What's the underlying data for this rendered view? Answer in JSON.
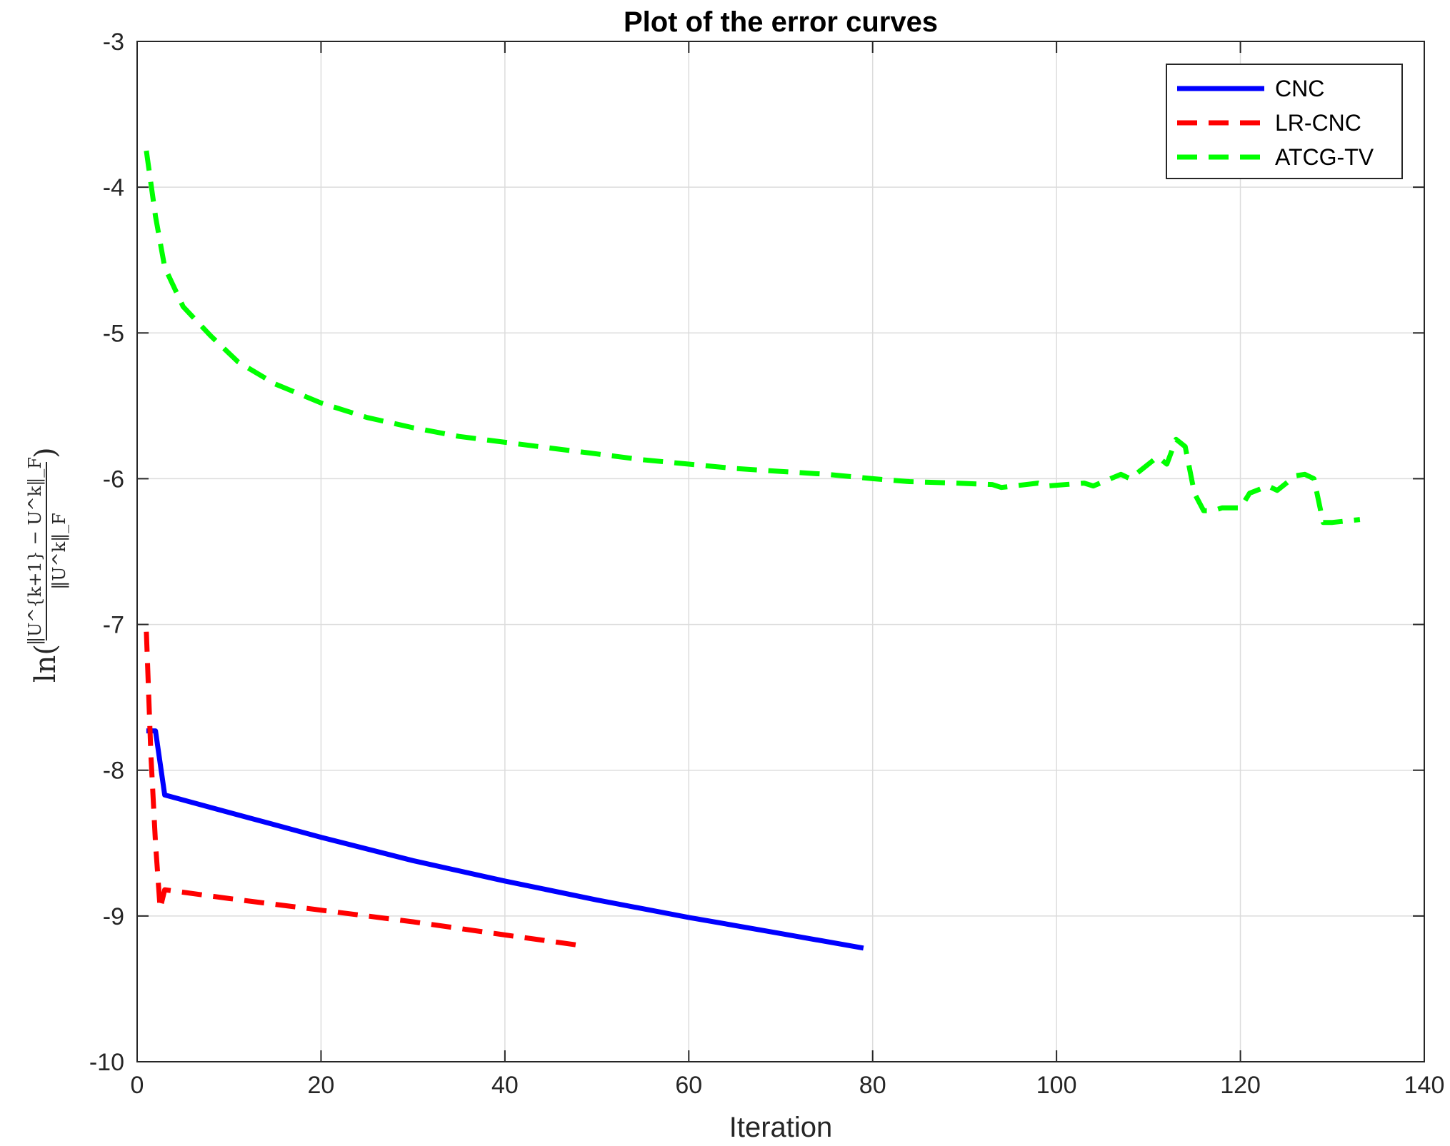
{
  "chart_data": {
    "type": "line",
    "title": "Plot of the error curves",
    "xlabel": "Iteration",
    "ylabel": {
      "prefix": "ln(",
      "numerator": "‖U^{k+1} − U^k‖_F",
      "denominator": "‖U^k‖_F",
      "suffix": ")"
    },
    "xlim": [
      0,
      140
    ],
    "ylim": [
      -10,
      -3
    ],
    "xticks": [
      0,
      20,
      40,
      60,
      80,
      100,
      120,
      140
    ],
    "yticks": [
      -10,
      -9,
      -8,
      -7,
      -6,
      -5,
      -4,
      -3
    ],
    "grid": true,
    "legend_position": "top-right",
    "series": [
      {
        "name": "CNC",
        "color": "#0000ff",
        "style": "solid",
        "x": [
          1,
          2,
          3,
          10,
          20,
          30,
          40,
          50,
          60,
          70,
          79
        ],
        "y": [
          -7.73,
          -7.73,
          -8.17,
          -8.29,
          -8.46,
          -8.62,
          -8.76,
          -8.89,
          -9.01,
          -9.12,
          -9.22
        ]
      },
      {
        "name": "LR-CNC",
        "color": "#ff0000",
        "style": "dashed",
        "x": [
          1,
          1.5,
          2,
          2.5,
          3,
          10,
          20,
          30,
          40,
          48
        ],
        "y": [
          -7.05,
          -7.9,
          -8.5,
          -8.95,
          -8.82,
          -8.88,
          -8.96,
          -9.04,
          -9.13,
          -9.2
        ]
      },
      {
        "name": "ATCG-TV",
        "color": "#00ff00",
        "style": "dashed",
        "x": [
          1,
          2,
          3,
          5,
          8,
          11,
          15,
          20,
          25,
          30,
          35,
          40,
          45,
          50,
          55,
          60,
          65,
          70,
          75,
          80,
          84,
          89,
          93,
          94,
          98,
          99,
          103,
          104,
          107,
          108,
          111,
          112,
          113,
          114,
          115,
          116,
          117,
          118,
          120,
          121,
          123,
          124,
          126,
          127,
          128,
          129,
          130,
          133
        ],
        "y": [
          -3.75,
          -4.2,
          -4.55,
          -4.82,
          -5.02,
          -5.2,
          -5.35,
          -5.48,
          -5.58,
          -5.65,
          -5.71,
          -5.75,
          -5.79,
          -5.83,
          -5.87,
          -5.9,
          -5.93,
          -5.95,
          -5.97,
          -6.0,
          -6.02,
          -6.03,
          -6.04,
          -6.06,
          -6.03,
          -6.05,
          -6.03,
          -6.05,
          -5.97,
          -6.0,
          -5.85,
          -5.9,
          -5.73,
          -5.78,
          -6.1,
          -6.22,
          -6.22,
          -6.2,
          -6.2,
          -6.1,
          -6.05,
          -6.08,
          -5.98,
          -5.97,
          -6.0,
          -6.3,
          -6.3,
          -6.28
        ]
      }
    ]
  }
}
